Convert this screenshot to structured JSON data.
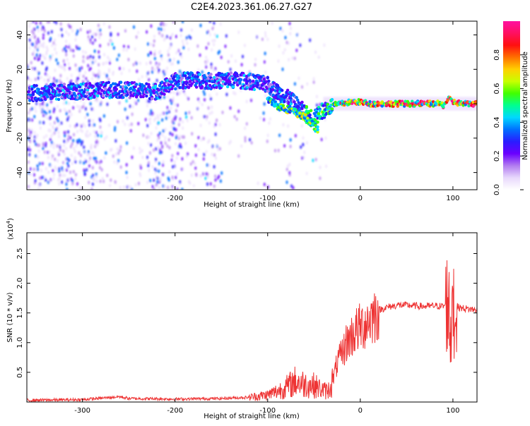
{
  "page": {
    "title": "C2E4.2023.361.06.27.G27"
  },
  "colors": {
    "snr_line": "#ee3333",
    "colorbar": [
      "#ffffff",
      "#e8d8fc",
      "#b27cf0",
      "#6a00ff",
      "#2a1cff",
      "#0070ff",
      "#00d8ff",
      "#00ff90",
      "#40ff00",
      "#c8ff00",
      "#ffd000",
      "#ff7000",
      "#ff1010",
      "#ff1060",
      "#ff10a0"
    ]
  },
  "chart_data": [
    {
      "type": "heatmap",
      "title": "C2E4.2023.361.06.27.G27",
      "xlabel": "Height of straight line (km)",
      "ylabel": "Frequency (Hz)",
      "xlim": [
        -360,
        126
      ],
      "ylim": [
        -50,
        48
      ],
      "xticks": [
        -300,
        -200,
        -100,
        0,
        100
      ],
      "yticks": [
        -40,
        -20,
        0,
        20,
        40
      ],
      "colorbar": {
        "label": "Normalized spectral amplitude",
        "range": [
          0,
          1
        ],
        "ticks": [
          "0.0",
          "0.2",
          "0.4",
          "0.6",
          "0.8"
        ]
      },
      "ridge": {
        "x": [
          -355,
          -330,
          -300,
          -280,
          -250,
          -220,
          -200,
          -180,
          -160,
          -140,
          -120,
          -100,
          -90,
          -80,
          -70,
          -60,
          -50,
          -45,
          -40,
          -30,
          -20,
          -10,
          0,
          10,
          30,
          50,
          70,
          85,
          90,
          95,
          100,
          110,
          126
        ],
        "y": [
          6,
          7,
          7,
          8,
          8,
          7,
          13,
          14,
          13,
          14,
          13,
          11,
          7,
          4,
          0,
          -5,
          -9,
          -6,
          -4,
          -1,
          0,
          1,
          1,
          0,
          0,
          0,
          0,
          0,
          -1,
          3,
          1,
          0,
          0
        ]
      },
      "lower_branch": {
        "x": [
          -100,
          -90,
          -80,
          -70,
          -60,
          -50,
          -45
        ],
        "y": [
          3,
          -1,
          -3,
          -5,
          -8,
          -13,
          -16
        ]
      }
    },
    {
      "type": "line",
      "xlabel": "Height of straight line (km)",
      "ylabel": "SNR (10 * v/v)",
      "y_multiplier": "(x10^4)",
      "xlim": [
        -360,
        126
      ],
      "ylim": [
        0,
        28500
      ],
      "xticks": [
        -300,
        -200,
        -100,
        0,
        100
      ],
      "yticks": [
        5000,
        10000,
        15000,
        20000,
        25000
      ],
      "ytick_labels": [
        "0.5",
        "1.0",
        "1.5",
        "2.0",
        "2.5"
      ],
      "series": [
        {
          "x": [
            -360,
            -300,
            -260,
            -250,
            -200,
            -150,
            -120,
            -100,
            -90,
            -80,
            -70,
            -60,
            -50,
            -40,
            -35,
            -30,
            -25,
            -20,
            -15,
            -10,
            -5,
            0,
            10,
            20,
            30,
            40,
            50,
            60,
            70,
            80,
            90,
            95,
            98,
            100,
            102,
            105,
            110,
            120,
            126
          ],
          "y": [
            300,
            400,
            900,
            600,
            500,
            600,
            800,
            1200,
            1800,
            2500,
            3500,
            3000,
            2800,
            2000,
            1800,
            3500,
            6500,
            8000,
            10000,
            11000,
            12000,
            12500,
            14000,
            15500,
            16000,
            16300,
            16300,
            16200,
            16100,
            16200,
            16100,
            17000,
            10000,
            15000,
            17000,
            16000,
            15800,
            15600,
            15500
          ]
        }
      ]
    }
  ]
}
